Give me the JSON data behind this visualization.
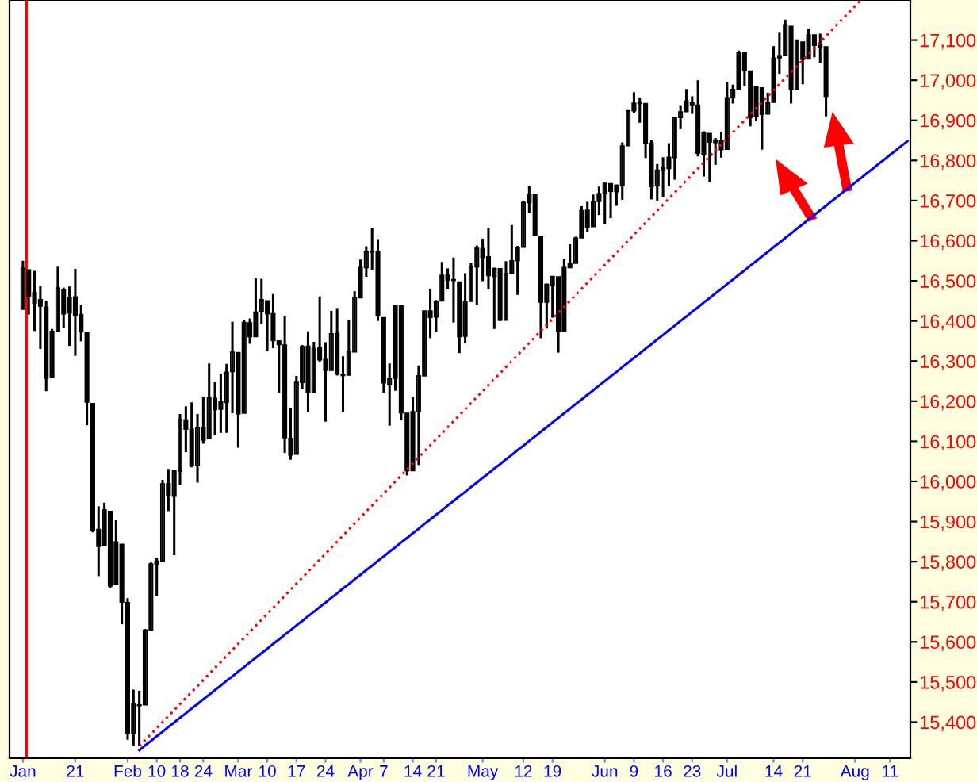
{
  "chart_data": {
    "type": "candlestick",
    "color": "#000000",
    "categories": [
      "Jan",
      null,
      null,
      null,
      null,
      null,
      null,
      null,
      null,
      "21",
      null,
      null,
      null,
      null,
      null,
      null,
      null,
      null,
      "Feb",
      null,
      null,
      null,
      null,
      "10",
      null,
      null,
      null,
      "18",
      null,
      null,
      null,
      "24",
      null,
      null,
      null,
      null,
      null,
      "Mar",
      null,
      null,
      null,
      null,
      "10",
      null,
      null,
      null,
      null,
      "17",
      null,
      null,
      null,
      null,
      "24",
      null,
      null,
      null,
      null,
      null,
      "Apr",
      null,
      null,
      null,
      "7",
      null,
      null,
      null,
      null,
      "14",
      null,
      null,
      null,
      "21",
      null,
      null,
      null,
      null,
      null,
      null,
      null,
      "May",
      null,
      null,
      null,
      null,
      null,
      null,
      "12",
      null,
      null,
      null,
      null,
      "19",
      null,
      null,
      null,
      null,
      null,
      null,
      null,
      null,
      "Jun",
      null,
      null,
      null,
      null,
      "9",
      null,
      null,
      null,
      null,
      "16",
      null,
      null,
      null,
      null,
      "23",
      null,
      null,
      null,
      null,
      null,
      "Jul",
      null,
      null,
      null,
      null,
      null,
      null,
      null,
      "14",
      null,
      null,
      null,
      null,
      "21",
      null,
      null,
      null,
      null,
      null,
      null,
      null,
      null,
      "Aug",
      null,
      null,
      null,
      null,
      null,
      "11",
      null,
      null,
      null
    ],
    "ohlc": [
      [
        16429,
        16550,
        16429,
        16531
      ],
      [
        16527,
        16528,
        16416,
        16462
      ],
      [
        16471,
        16525,
        16375,
        16444
      ],
      [
        16453,
        16487,
        16330,
        16437
      ],
      [
        16434,
        16450,
        16225,
        16257
      ],
      [
        16260,
        16380,
        16260,
        16374
      ],
      [
        16375,
        16535,
        16375,
        16482
      ],
      [
        16477,
        16483,
        16383,
        16418
      ],
      [
        16420,
        16486,
        16338,
        16459
      ],
      [
        16460,
        16530,
        16313,
        16414
      ],
      [
        16416,
        16439,
        16349,
        16373
      ],
      [
        16371,
        16371,
        16140,
        16198
      ],
      [
        16194,
        16194,
        15873,
        15879
      ],
      [
        15880,
        15938,
        15764,
        15838
      ],
      [
        15840,
        15947,
        15840,
        15929
      ],
      [
        15925,
        15925,
        15735,
        15739
      ],
      [
        15743,
        15903,
        15743,
        15849
      ],
      [
        15843,
        15843,
        15644,
        15699
      ],
      [
        15698,
        15709,
        15356,
        15373
      ],
      [
        15372,
        15481,
        15341,
        15445
      ],
      [
        15443,
        15478,
        15340,
        15441
      ],
      [
        15443,
        15632,
        15443,
        15629
      ],
      [
        15630,
        15798,
        15630,
        15794
      ],
      [
        15794,
        15810,
        15714,
        15801
      ],
      [
        15802,
        16004,
        15802,
        15994
      ],
      [
        15995,
        16031,
        15926,
        15964
      ],
      [
        15963,
        16027,
        15816,
        16027
      ],
      [
        16026,
        16168,
        15991,
        16154
      ],
      [
        16153,
        16187,
        16073,
        16130
      ],
      [
        16130,
        16197,
        16035,
        16040
      ],
      [
        16039,
        16168,
        15997,
        16133
      ],
      [
        16134,
        16211,
        16094,
        16103
      ],
      [
        16107,
        16294,
        16107,
        16208
      ],
      [
        16207,
        16247,
        16115,
        16179
      ],
      [
        16180,
        16267,
        16121,
        16198
      ],
      [
        16197,
        16293,
        16121,
        16272
      ],
      [
        16274,
        16398,
        16170,
        16322
      ],
      [
        16321,
        16321,
        16084,
        16168
      ],
      [
        16170,
        16403,
        16170,
        16396
      ],
      [
        16395,
        16406,
        16343,
        16361
      ],
      [
        16361,
        16506,
        16361,
        16422
      ],
      [
        16424,
        16505,
        16393,
        16453
      ],
      [
        16450,
        16450,
        16325,
        16418
      ],
      [
        16418,
        16467,
        16332,
        16351
      ],
      [
        16350,
        16350,
        16220,
        16341
      ],
      [
        16340,
        16413,
        16071,
        16109
      ],
      [
        16107,
        16183,
        16054,
        16066
      ],
      [
        16068,
        16263,
        16068,
        16247
      ],
      [
        16247,
        16340,
        16230,
        16336
      ],
      [
        16337,
        16374,
        16173,
        16223
      ],
      [
        16221,
        16348,
        16221,
        16331
      ],
      [
        16333,
        16461,
        16297,
        16303
      ],
      [
        16304,
        16347,
        16149,
        16277
      ],
      [
        16277,
        16425,
        16277,
        16368
      ],
      [
        16369,
        16432,
        16264,
        16268
      ],
      [
        16266,
        16312,
        16173,
        16264
      ],
      [
        16265,
        16403,
        16265,
        16323
      ],
      [
        16323,
        16474,
        16323,
        16458
      ],
      [
        16458,
        16553,
        16458,
        16533
      ],
      [
        16533,
        16586,
        16510,
        16573
      ],
      [
        16574,
        16631,
        16528,
        16572
      ],
      [
        16573,
        16604,
        16400,
        16413
      ],
      [
        16408,
        16408,
        16221,
        16246
      ],
      [
        16241,
        16294,
        16139,
        16256
      ],
      [
        16257,
        16440,
        16226,
        16438
      ],
      [
        16437,
        16439,
        16152,
        16171
      ],
      [
        16170,
        16170,
        16015,
        16027
      ],
      [
        16027,
        16210,
        16027,
        16174
      ],
      [
        16174,
        16289,
        16041,
        16263
      ],
      [
        16263,
        16425,
        16263,
        16425
      ],
      [
        16425,
        16480,
        16357,
        16409
      ],
      [
        16410,
        16452,
        16373,
        16449
      ],
      [
        16450,
        16547,
        16450,
        16514
      ],
      [
        16514,
        16531,
        16479,
        16502
      ],
      [
        16503,
        16558,
        16396,
        16501
      ],
      [
        16497,
        16497,
        16320,
        16361
      ],
      [
        16362,
        16519,
        16344,
        16448
      ],
      [
        16449,
        16544,
        16449,
        16535
      ],
      [
        16535,
        16588,
        16440,
        16581
      ],
      [
        16580,
        16605,
        16499,
        16558
      ],
      [
        16560,
        16632,
        16479,
        16513
      ],
      [
        16511,
        16533,
        16380,
        16530
      ],
      [
        16530,
        16530,
        16400,
        16402
      ],
      [
        16402,
        16549,
        16402,
        16518
      ],
      [
        16518,
        16639,
        16518,
        16550
      ],
      [
        16550,
        16587,
        16465,
        16583
      ],
      [
        16584,
        16700,
        16584,
        16695
      ],
      [
        16695,
        16736,
        16669,
        16715
      ],
      [
        16714,
        16715,
        16612,
        16614
      ],
      [
        16610,
        16610,
        16357,
        16447
      ],
      [
        16447,
        16493,
        16381,
        16491
      ],
      [
        16488,
        16511,
        16408,
        16511
      ],
      [
        16510,
        16510,
        16321,
        16374
      ],
      [
        16375,
        16554,
        16375,
        16533
      ],
      [
        16533,
        16591,
        16533,
        16543
      ],
      [
        16544,
        16610,
        16544,
        16606
      ],
      [
        16607,
        16686,
        16607,
        16675
      ],
      [
        16676,
        16697,
        16622,
        16634
      ],
      [
        16635,
        16715,
        16635,
        16698
      ],
      [
        16698,
        16735,
        16664,
        16717
      ],
      [
        16718,
        16744,
        16642,
        16743
      ],
      [
        16742,
        16742,
        16656,
        16723
      ],
      [
        16722,
        16740,
        16687,
        16738
      ],
      [
        16737,
        16845,
        16702,
        16836
      ],
      [
        16837,
        16925,
        16837,
        16924
      ],
      [
        16924,
        16970,
        16918,
        16943
      ],
      [
        16942,
        16957,
        16894,
        16945
      ],
      [
        16942,
        16942,
        16806,
        16843
      ],
      [
        16843,
        16851,
        16703,
        16735
      ],
      [
        16737,
        16791,
        16700,
        16776
      ],
      [
        16775,
        16808,
        16709,
        16781
      ],
      [
        16780,
        16843,
        16737,
        16808
      ],
      [
        16807,
        16907,
        16752,
        16907
      ],
      [
        16907,
        16936,
        16878,
        16921
      ],
      [
        16922,
        16978,
        16922,
        16948
      ],
      [
        16945,
        16960,
        16916,
        16937
      ],
      [
        16938,
        17000,
        16810,
        16818
      ],
      [
        16815,
        16873,
        16760,
        16868
      ],
      [
        16867,
        16867,
        16746,
        16846
      ],
      [
        16845,
        16856,
        16789,
        16851
      ],
      [
        16850,
        16872,
        16807,
        16827
      ],
      [
        16828,
        16996,
        16828,
        16956
      ],
      [
        16957,
        16989,
        16942,
        16977
      ],
      [
        16978,
        17074,
        16978,
        17068
      ],
      [
        17068,
        17068,
        16986,
        17024
      ],
      [
        17023,
        17023,
        16885,
        16907
      ],
      [
        16909,
        16985,
        16898,
        16985
      ],
      [
        16981,
        16981,
        16827,
        16915
      ],
      [
        16916,
        16969,
        16915,
        16944
      ],
      [
        16945,
        17085,
        16945,
        17055
      ],
      [
        17056,
        17120,
        17016,
        17061
      ],
      [
        17062,
        17151,
        17062,
        17138
      ],
      [
        17134,
        17135,
        16942,
        16977
      ],
      [
        16978,
        17101,
        16978,
        17100
      ],
      [
        17095,
        17095,
        16990,
        17052
      ],
      [
        17053,
        17128,
        17053,
        17113
      ],
      [
        17113,
        17113,
        17057,
        17087
      ],
      [
        17087,
        17116,
        17043,
        17083
      ],
      [
        17083,
        17083,
        16910,
        16960
      ],
      null,
      null,
      null,
      null,
      null,
      null,
      null,
      null,
      null,
      null,
      null,
      null,
      null,
      null
    ],
    "series": [
      {
        "type": "line",
        "color": "#ff0000",
        "line_style": "dotted",
        "values": [
          null,
          null,
          null,
          null,
          null,
          null,
          null,
          null,
          null,
          null,
          null,
          null,
          null,
          null,
          null,
          null,
          null,
          null,
          null,
          null,
          15340,
          15355,
          15370,
          15385,
          15400,
          15415,
          15430,
          15445,
          15460,
          15475,
          15490,
          15505,
          15520,
          15535,
          15550,
          15565,
          15580,
          15595,
          15610,
          15625,
          15640,
          15655,
          15670,
          15685,
          15700,
          15715,
          15730,
          15745,
          15760,
          15775,
          15790,
          15805,
          15820,
          15835,
          15850,
          15865,
          15880,
          15895,
          15910,
          15925,
          15940,
          15955,
          15970,
          15985,
          16000,
          16015,
          16030,
          16045,
          16060,
          16075,
          16090,
          16105,
          16120,
          16135,
          16150,
          16165,
          16180,
          16195,
          16210,
          16225,
          16240,
          16255,
          16270,
          16285,
          16300,
          16315,
          16330,
          16345,
          16360,
          16375,
          16390,
          16405,
          16420,
          16435,
          16450,
          16465,
          16480,
          16495,
          16510,
          16525,
          16540,
          16555,
          16570,
          16585,
          16600,
          16615,
          16630,
          16645,
          16660,
          16675,
          16690,
          16705,
          16720,
          16735,
          16750,
          16765,
          16780,
          16795,
          16810,
          16825,
          16840,
          16855,
          16870,
          16885,
          16900,
          16915,
          16930,
          16945,
          16960,
          16975,
          16990,
          17005,
          17020,
          17035,
          17050,
          17065,
          17080,
          17095,
          17110,
          17125,
          17140,
          17155,
          17170,
          17185,
          17200,
          null,
          null,
          null,
          null,
          null,
          null,
          null,
          null
        ]
      },
      {
        "type": "line",
        "color": "#0000ff",
        "line_style": "solid",
        "values": [
          null,
          null,
          null,
          null,
          null,
          null,
          null,
          null,
          null,
          null,
          null,
          null,
          null,
          null,
          null,
          null,
          null,
          null,
          null,
          null,
          15330,
          15342,
          15353,
          15365,
          15376,
          15388,
          15399,
          15411,
          15422,
          15434,
          15445,
          15457,
          15468,
          15480,
          15491,
          15503,
          15514,
          15526,
          15537,
          15549,
          15560,
          15572,
          15583,
          15595,
          15606,
          15618,
          15629,
          15641,
          15652,
          15664,
          15675,
          15687,
          15698,
          15710,
          15721,
          15733,
          15744,
          15756,
          15767,
          15779,
          15790,
          15802,
          15813,
          15825,
          15836,
          15848,
          15859,
          15871,
          15882,
          15894,
          15905,
          15917,
          15928,
          15940,
          15951,
          15963,
          15974,
          15986,
          15997,
          16009,
          16020,
          16032,
          16043,
          16055,
          16066,
          16078,
          16089,
          16101,
          16112,
          16124,
          16135,
          16147,
          16158,
          16170,
          16181,
          16193,
          16204,
          16216,
          16227,
          16239,
          16250,
          16262,
          16273,
          16285,
          16296,
          16308,
          16319,
          16331,
          16342,
          16354,
          16365,
          16377,
          16388,
          16400,
          16411,
          16423,
          16434,
          16446,
          16457,
          16469,
          16480,
          16492,
          16503,
          16515,
          16526,
          16538,
          16549,
          16561,
          16572,
          16584,
          16595,
          16607,
          16618,
          16630,
          16641,
          16653,
          16664,
          16676,
          16687,
          16699,
          16710,
          16722,
          16733,
          16745,
          16756,
          16768,
          16779,
          16791,
          16802,
          16814,
          16825,
          16837,
          16848
        ]
      }
    ],
    "ylim": [
      15310,
      17200
    ],
    "yticks": [
      {
        "value": 15400,
        "label": "15,400"
      },
      {
        "value": 15500,
        "label": "15,500"
      },
      {
        "value": 15600,
        "label": "15,600"
      },
      {
        "value": 15700,
        "label": "15,700"
      },
      {
        "value": 15800,
        "label": "15,800"
      },
      {
        "value": 15900,
        "label": "15,900"
      },
      {
        "value": 16000,
        "label": "16,000"
      },
      {
        "value": 16100,
        "label": "16,100"
      },
      {
        "value": 16200,
        "label": "16,200"
      },
      {
        "value": 16300,
        "label": "16,300"
      },
      {
        "value": 16400,
        "label": "16,400"
      },
      {
        "value": 16500,
        "label": "16,500"
      },
      {
        "value": 16600,
        "label": "16,600"
      },
      {
        "value": 16700,
        "label": "16,700"
      },
      {
        "value": 16800,
        "label": "16,800"
      },
      {
        "value": 16900,
        "label": "16,900"
      },
      {
        "value": 17000,
        "label": "17,000"
      },
      {
        "value": 17100,
        "label": "17,100"
      }
    ],
    "grid": false
  }
}
